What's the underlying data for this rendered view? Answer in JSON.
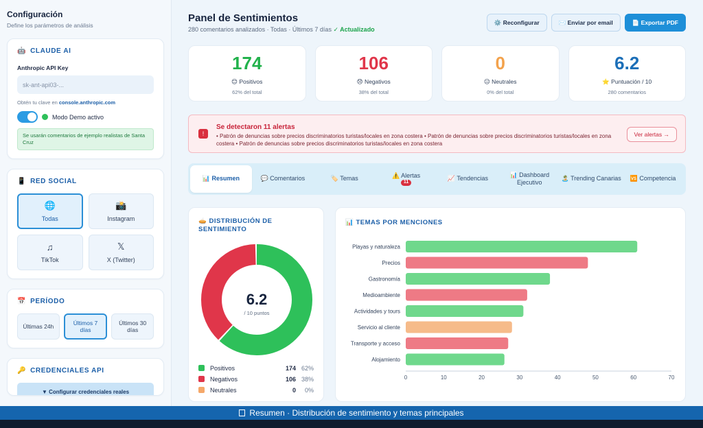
{
  "sidebar": {
    "title": "Configuración",
    "subtitle": "Define los parámetros de análisis",
    "claude": {
      "heading": "CLAUDE AI",
      "icon": "robot-icon",
      "key_label": "Anthropic API Key",
      "key_placeholder": "sk-ant-api03-...",
      "hint_prefix": "Obtén tu clave en",
      "hint_link": "console.anthropic.com",
      "demo_label": "Modo Demo activo",
      "demo_note": "Se usarán comentarios de ejemplo realistas de Santa Cruz"
    },
    "network": {
      "heading": "RED SOCIAL",
      "icon": "phone-icon",
      "options": [
        {
          "label": "Todas",
          "glyph": "🌐"
        },
        {
          "label": "Instagram",
          "glyph": "📸"
        },
        {
          "label": "TikTok",
          "glyph": "♫"
        },
        {
          "label": "X (Twitter)",
          "glyph": "𝕏"
        }
      ],
      "selected": "Todas"
    },
    "period": {
      "heading": "PERÍODO",
      "icon": "calendar-icon",
      "options": [
        "Últimas 24h",
        "Últimos 7 días",
        "Últimos 30 días"
      ],
      "selected": "Últimos 7 días"
    },
    "credentials": {
      "heading": "CREDENCIALES API",
      "icon": "key-icon",
      "button": "▼ Configurar credenciales reales"
    }
  },
  "header": {
    "title": "Panel de Sentimientos",
    "subtitle": "280 comentarios analizados · Todas · Últimos 7 días",
    "status": "✓ Actualizado",
    "actions": [
      {
        "label": "⚙️ Reconfigurar",
        "primary": false
      },
      {
        "label": "✉️ Enviar por email",
        "primary": false
      },
      {
        "label": "📄 Exportar PDF",
        "primary": true
      }
    ]
  },
  "stats": [
    {
      "value": "174",
      "label": "😊 Positivos",
      "sub": "62% del total",
      "color": "#22b24c"
    },
    {
      "value": "106",
      "label": "😞 Negativos",
      "sub": "38% del total",
      "color": "#e0364a"
    },
    {
      "value": "0",
      "label": "😐 Neutrales",
      "sub": "0% del total",
      "color": "#f3a24c"
    },
    {
      "value": "6.2",
      "label": "⭐ Puntuación / 10",
      "sub": "280 comentarios",
      "color": "#1c6fb8"
    }
  ],
  "alert": {
    "title": "Se detectaron 11 alertas",
    "body": "• Patrón de denuncias sobre precios discriminatorios turistas/locales en zona costera   • Patrón de denuncias sobre precios discriminatorios turistas/locales en zona costera   • Patrón de denuncias sobre precios discriminatorios turistas/locales en zona costera",
    "button": "Ver alertas →"
  },
  "tabs": [
    {
      "label": "📊 Resumen",
      "active": true
    },
    {
      "label": "💬 Comentarios",
      "active": false
    },
    {
      "label": "🏷️ Temas",
      "active": false
    },
    {
      "label": "⚠️ Alertas",
      "badge": "11",
      "active": false
    },
    {
      "label": "📈 Tendencias",
      "active": false
    },
    {
      "label": "📊 Dashboard Ejecutivo",
      "active": false
    },
    {
      "label": "🏝️ Trending Canarias",
      "active": false
    },
    {
      "label": "🆚 Competencia",
      "active": false
    }
  ],
  "sentiment": {
    "heading": "🥧 DISTRIBUCIÓN DE SENTIMIENTO",
    "score": "6.2",
    "score_unit": "/ 10 puntos",
    "legend": [
      {
        "name": "Positivos",
        "count": "174",
        "pct": "62%",
        "color": "#2ec05a"
      },
      {
        "name": "Negativos",
        "count": "106",
        "pct": "38%",
        "color": "#e0364a"
      },
      {
        "name": "Neutrales",
        "count": "0",
        "pct": "0%",
        "color": "#f5a86a"
      }
    ]
  },
  "topics": {
    "heading": "📊 TEMAS POR MENCIONES"
  },
  "chart_data": [
    {
      "type": "pie",
      "categories": [
        "Positivos",
        "Negativos",
        "Neutrales"
      ],
      "values": [
        174,
        106,
        0
      ],
      "colors": [
        "#2ec05a",
        "#e0364a",
        "#f5a86a"
      ]
    },
    {
      "type": "bar",
      "orientation": "horizontal",
      "title": "TEMAS POR MENCIONES",
      "categories": [
        "Playas y naturaleza",
        "Precios",
        "Gastronomía",
        "Medioambiente",
        "Actividades y tours",
        "Servicio al cliente",
        "Transporte y acceso",
        "Alojamiento"
      ],
      "values": [
        61,
        48,
        38,
        32,
        31,
        28,
        27,
        26
      ],
      "colors": [
        "#6fd88c",
        "#ee7a85",
        "#6fd88c",
        "#ee7a85",
        "#6fd88c",
        "#f6bb8a",
        "#ee7a85",
        "#6fd88c"
      ],
      "xlim": [
        0,
        70
      ],
      "xticks": [
        0,
        10,
        20,
        30,
        40,
        50,
        60,
        70
      ]
    }
  ],
  "footer": {
    "caption": "Resumen · Distribución de sentimiento y temas principales"
  }
}
